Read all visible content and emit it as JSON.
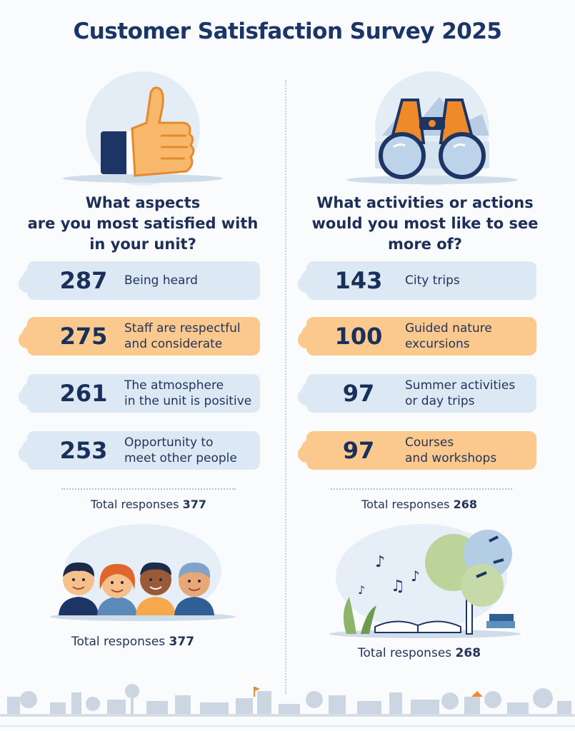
{
  "title": "Customer Satisfaction Survey 2025",
  "colors": {
    "navy": "#1b3566",
    "blue_pill": "#dce8f4",
    "orange_pill": "#fbc98d",
    "accent_orange": "#ef8a2a"
  },
  "left": {
    "icon": "thumbs-up-icon",
    "question_lines": [
      "What aspects",
      "are you most satisfied with",
      "in your unit?"
    ],
    "items": [
      {
        "value": "287",
        "label_lines": [
          "Being heard"
        ],
        "style": "blue"
      },
      {
        "value": "275",
        "label_lines": [
          "Staff are respectful",
          "and considerate"
        ],
        "style": "orange"
      },
      {
        "value": "261",
        "label_lines": [
          "The atmosphere",
          "in the unit is positive"
        ],
        "style": "blue"
      },
      {
        "value": "253",
        "label_lines": [
          "Opportunity to",
          "meet other people"
        ],
        "style": "blue"
      }
    ],
    "total_label": "Total responses",
    "total_value": "377",
    "footer_illustration": "people-group-icon",
    "footer_total_label": "Total responses",
    "footer_total_value": "377"
  },
  "right": {
    "icon": "binoculars-icon",
    "question_lines": [
      "What activities or actions",
      "would you most like to see",
      "more of?"
    ],
    "items": [
      {
        "value": "143",
        "label_lines": [
          "City trips"
        ],
        "style": "blue"
      },
      {
        "value": "100",
        "label_lines": [
          "Guided nature",
          "excursions"
        ],
        "style": "orange"
      },
      {
        "value": "97",
        "label_lines": [
          "Summer activities",
          "or day trips"
        ],
        "style": "blue"
      },
      {
        "value": "97",
        "label_lines": [
          "Courses",
          "and workshops"
        ],
        "style": "orange"
      }
    ],
    "total_label": "Total responses",
    "total_value": "268",
    "footer_illustration": "nature-music-book-icon",
    "footer_total_label": "Total responses",
    "footer_total_value": "268"
  }
}
